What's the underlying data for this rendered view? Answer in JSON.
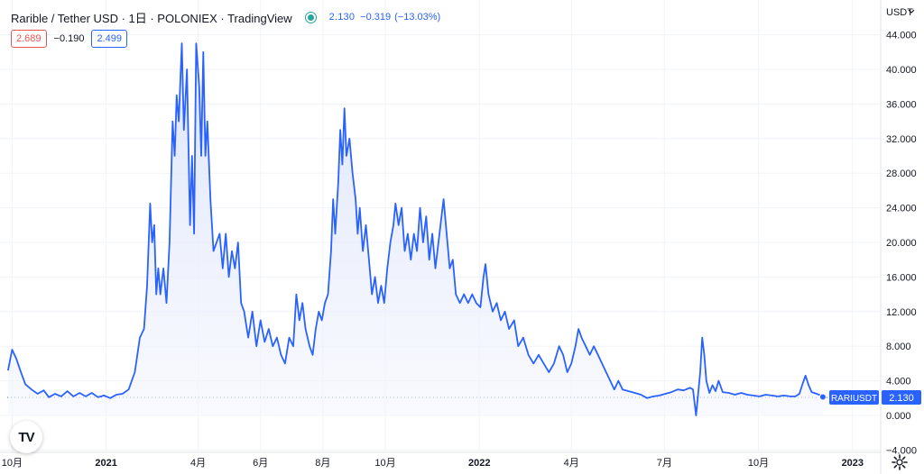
{
  "legend": {
    "title": "Rarible / Tether USD · 1日 · POLONIEX · TradingView",
    "price": "2.130",
    "change": "−0.319",
    "change_pct": "(−13.03%)",
    "bid": "2.689",
    "spread": "−0.190",
    "ask": "2.499"
  },
  "price_label": {
    "symbol": "RARIUSDT",
    "value": "2.130"
  },
  "currency": "USDT",
  "tv_logo": "TV",
  "colors": {
    "line": "#2962ff",
    "fill_top": "#dbe3fb",
    "label_bg": "#2962ff",
    "bid_box": "#ef5350",
    "ask_box": "#2962ff",
    "live_dot": "#26a69a",
    "grid": "#f0f3fa"
  },
  "chart_data": {
    "type": "area",
    "title": "Rarible / Tether USD · 1日 · POLONIEX · TradingView",
    "xlabel": "",
    "ylabel": "",
    "ylim": [
      -4,
      46
    ],
    "grid": true,
    "legend": "top-left",
    "x_range": [
      "2020-09-28",
      "2023-01-25"
    ],
    "y_ticks": [
      "44.000",
      "40.000",
      "36.000",
      "32.000",
      "28.000",
      "24.000",
      "20.000",
      "16.000",
      "12.000",
      "8.000",
      "4.000",
      "0.000",
      "−4.000"
    ],
    "y_tick_values": [
      44,
      40,
      36,
      32,
      28,
      24,
      20,
      16,
      12,
      8,
      4,
      0,
      -4
    ],
    "x_ticks": [
      {
        "label": "10月",
        "date": "2020-10-01",
        "bold": false
      },
      {
        "label": "2021",
        "date": "2021-01-01",
        "bold": true
      },
      {
        "label": "4月",
        "date": "2021-04-01",
        "bold": false
      },
      {
        "label": "6月",
        "date": "2021-06-01",
        "bold": false
      },
      {
        "label": "8月",
        "date": "2021-08-01",
        "bold": false
      },
      {
        "label": "10月",
        "date": "2021-10-01",
        "bold": false
      },
      {
        "label": "2022",
        "date": "2022-01-01",
        "bold": true
      },
      {
        "label": "4月",
        "date": "2022-04-01",
        "bold": false
      },
      {
        "label": "7月",
        "date": "2022-07-01",
        "bold": false
      },
      {
        "label": "10月",
        "date": "2022-10-01",
        "bold": false
      },
      {
        "label": "2023",
        "date": "2023-01-01",
        "bold": true
      }
    ],
    "last_value": 2.13,
    "series": [
      {
        "values": [
          [
            "2020-09-27",
            5.2
          ],
          [
            "2020-10-01",
            7.6
          ],
          [
            "2020-10-05",
            6.6
          ],
          [
            "2020-10-09",
            5.2
          ],
          [
            "2020-10-14",
            3.6
          ],
          [
            "2020-10-20",
            3.0
          ],
          [
            "2020-10-26",
            2.5
          ],
          [
            "2020-11-01",
            2.9
          ],
          [
            "2020-11-06",
            2.1
          ],
          [
            "2020-11-12",
            2.5
          ],
          [
            "2020-11-18",
            2.2
          ],
          [
            "2020-11-24",
            2.8
          ],
          [
            "2020-11-30",
            2.2
          ],
          [
            "2020-12-06",
            2.6
          ],
          [
            "2020-12-12",
            2.2
          ],
          [
            "2020-12-18",
            2.6
          ],
          [
            "2020-12-24",
            2.1
          ],
          [
            "2020-12-30",
            2.3
          ],
          [
            "2021-01-05",
            2.0
          ],
          [
            "2021-01-11",
            2.4
          ],
          [
            "2021-01-17",
            2.5
          ],
          [
            "2021-01-23",
            3.0
          ],
          [
            "2021-01-29",
            5.0
          ],
          [
            "2021-02-03",
            9.0
          ],
          [
            "2021-02-07",
            10.0
          ],
          [
            "2021-02-10",
            15.0
          ],
          [
            "2021-02-13",
            24.5
          ],
          [
            "2021-02-15",
            20.0
          ],
          [
            "2021-02-17",
            22.0
          ],
          [
            "2021-02-19",
            14.0
          ],
          [
            "2021-02-21",
            17.0
          ],
          [
            "2021-02-23",
            14.0
          ],
          [
            "2021-02-26",
            17.0
          ],
          [
            "2021-03-01",
            13.0
          ],
          [
            "2021-03-04",
            20.0
          ],
          [
            "2021-03-07",
            34.0
          ],
          [
            "2021-03-09",
            30.0
          ],
          [
            "2021-03-11",
            37.0
          ],
          [
            "2021-03-13",
            34.0
          ],
          [
            "2021-03-16",
            43.0
          ],
          [
            "2021-03-18",
            33.0
          ],
          [
            "2021-03-21",
            40.0
          ],
          [
            "2021-03-24",
            22.0
          ],
          [
            "2021-03-26",
            30.0
          ],
          [
            "2021-03-28",
            21.0
          ],
          [
            "2021-03-30",
            43.0
          ],
          [
            "2021-04-02",
            38.0
          ],
          [
            "2021-04-04",
            30.0
          ],
          [
            "2021-04-06",
            42.0
          ],
          [
            "2021-04-08",
            30.0
          ],
          [
            "2021-04-10",
            34.0
          ],
          [
            "2021-04-13",
            25.0
          ],
          [
            "2021-04-16",
            19.0
          ],
          [
            "2021-04-19",
            20.0
          ],
          [
            "2021-04-22",
            21.0
          ],
          [
            "2021-04-25",
            17.0
          ],
          [
            "2021-04-28",
            21.0
          ],
          [
            "2021-05-01",
            16.0
          ],
          [
            "2021-05-04",
            19.0
          ],
          [
            "2021-05-07",
            17.0
          ],
          [
            "2021-05-10",
            20.0
          ],
          [
            "2021-05-13",
            13.0
          ],
          [
            "2021-05-16",
            12.0
          ],
          [
            "2021-05-20",
            9.0
          ],
          [
            "2021-05-24",
            12.0
          ],
          [
            "2021-05-28",
            8.0
          ],
          [
            "2021-06-01",
            11.0
          ],
          [
            "2021-06-05",
            8.5
          ],
          [
            "2021-06-09",
            10.0
          ],
          [
            "2021-06-13",
            8.0
          ],
          [
            "2021-06-17",
            9.0
          ],
          [
            "2021-06-21",
            7.0
          ],
          [
            "2021-06-25",
            6.0
          ],
          [
            "2021-06-29",
            9.0
          ],
          [
            "2021-07-03",
            8.0
          ],
          [
            "2021-07-06",
            14.0
          ],
          [
            "2021-07-09",
            11.0
          ],
          [
            "2021-07-12",
            13.0
          ],
          [
            "2021-07-15",
            10.0
          ],
          [
            "2021-07-19",
            8.0
          ],
          [
            "2021-07-22",
            7.0
          ],
          [
            "2021-07-25",
            10.0
          ],
          [
            "2021-07-28",
            12.0
          ],
          [
            "2021-07-31",
            11.0
          ],
          [
            "2021-08-03",
            13.0
          ],
          [
            "2021-08-06",
            14.0
          ],
          [
            "2021-08-09",
            19.0
          ],
          [
            "2021-08-11",
            25.0
          ],
          [
            "2021-08-13",
            21.0
          ],
          [
            "2021-08-16",
            27.0
          ],
          [
            "2021-08-18",
            33.0
          ],
          [
            "2021-08-20",
            29.0
          ],
          [
            "2021-08-22",
            35.5
          ],
          [
            "2021-08-24",
            30.0
          ],
          [
            "2021-08-27",
            32.0
          ],
          [
            "2021-08-30",
            28.0
          ],
          [
            "2021-09-02",
            25.0
          ],
          [
            "2021-09-04",
            21.0
          ],
          [
            "2021-09-06",
            24.0
          ],
          [
            "2021-09-09",
            19.0
          ],
          [
            "2021-09-12",
            22.0
          ],
          [
            "2021-09-15",
            18.0
          ],
          [
            "2021-09-18",
            14.0
          ],
          [
            "2021-09-21",
            16.0
          ],
          [
            "2021-09-24",
            13.0
          ],
          [
            "2021-09-27",
            15.0
          ],
          [
            "2021-09-30",
            13.0
          ],
          [
            "2021-10-03",
            17.0
          ],
          [
            "2021-10-06",
            20.0
          ],
          [
            "2021-10-09",
            22.0
          ],
          [
            "2021-10-11",
            24.5
          ],
          [
            "2021-10-14",
            22.0
          ],
          [
            "2021-10-17",
            24.0
          ],
          [
            "2021-10-20",
            19.0
          ],
          [
            "2021-10-23",
            21.0
          ],
          [
            "2021-10-26",
            18.0
          ],
          [
            "2021-10-29",
            21.0
          ],
          [
            "2021-11-01",
            19.0
          ],
          [
            "2021-11-04",
            24.0
          ],
          [
            "2021-11-07",
            20.0
          ],
          [
            "2021-11-10",
            23.0
          ],
          [
            "2021-11-13",
            18.0
          ],
          [
            "2021-11-16",
            21.0
          ],
          [
            "2021-11-19",
            17.0
          ],
          [
            "2021-11-22",
            20.0
          ],
          [
            "2021-11-25",
            23.0
          ],
          [
            "2021-11-27",
            25.0
          ],
          [
            "2021-11-30",
            21.0
          ],
          [
            "2021-12-03",
            17.0
          ],
          [
            "2021-12-06",
            18.0
          ],
          [
            "2021-12-09",
            14.0
          ],
          [
            "2021-12-13",
            13.0
          ],
          [
            "2021-12-17",
            14.0
          ],
          [
            "2021-12-21",
            13.0
          ],
          [
            "2021-12-25",
            14.0
          ],
          [
            "2021-12-29",
            13.0
          ],
          [
            "2022-01-02",
            12.5
          ],
          [
            "2022-01-05",
            16.0
          ],
          [
            "2022-01-07",
            17.5
          ],
          [
            "2022-01-10",
            14.0
          ],
          [
            "2022-01-14",
            12.0
          ],
          [
            "2022-01-18",
            13.0
          ],
          [
            "2022-01-22",
            11.0
          ],
          [
            "2022-01-26",
            12.0
          ],
          [
            "2022-01-30",
            10.0
          ],
          [
            "2022-02-04",
            11.0
          ],
          [
            "2022-02-08",
            8.0
          ],
          [
            "2022-02-13",
            9.0
          ],
          [
            "2022-02-18",
            7.0
          ],
          [
            "2022-02-23",
            6.0
          ],
          [
            "2022-02-28",
            7.0
          ],
          [
            "2022-03-05",
            6.0
          ],
          [
            "2022-03-10",
            5.0
          ],
          [
            "2022-03-15",
            6.0
          ],
          [
            "2022-03-20",
            8.0
          ],
          [
            "2022-03-24",
            7.0
          ],
          [
            "2022-03-28",
            5.0
          ],
          [
            "2022-04-01",
            6.0
          ],
          [
            "2022-04-05",
            8.0
          ],
          [
            "2022-04-08",
            10.0
          ],
          [
            "2022-04-11",
            9.0
          ],
          [
            "2022-04-15",
            8.0
          ],
          [
            "2022-04-19",
            7.0
          ],
          [
            "2022-04-23",
            8.0
          ],
          [
            "2022-04-27",
            7.0
          ],
          [
            "2022-05-01",
            6.0
          ],
          [
            "2022-05-05",
            5.0
          ],
          [
            "2022-05-09",
            4.0
          ],
          [
            "2022-05-13",
            3.0
          ],
          [
            "2022-05-17",
            4.0
          ],
          [
            "2022-05-21",
            3.0
          ],
          [
            "2022-05-27",
            2.8
          ],
          [
            "2022-06-02",
            2.6
          ],
          [
            "2022-06-08",
            2.4
          ],
          [
            "2022-06-14",
            2.0
          ],
          [
            "2022-06-20",
            2.2
          ],
          [
            "2022-06-26",
            2.3
          ],
          [
            "2022-07-02",
            2.5
          ],
          [
            "2022-07-08",
            2.7
          ],
          [
            "2022-07-14",
            3.0
          ],
          [
            "2022-07-20",
            2.9
          ],
          [
            "2022-07-26",
            3.2
          ],
          [
            "2022-07-29",
            3.0
          ],
          [
            "2022-08-01",
            0.0
          ],
          [
            "2022-08-03",
            2.5
          ],
          [
            "2022-08-05",
            5.0
          ],
          [
            "2022-08-07",
            9.0
          ],
          [
            "2022-08-09",
            7.0
          ],
          [
            "2022-08-11",
            4.0
          ],
          [
            "2022-08-14",
            2.6
          ],
          [
            "2022-08-17",
            3.5
          ],
          [
            "2022-08-20",
            2.8
          ],
          [
            "2022-08-23",
            4.0
          ],
          [
            "2022-08-27",
            2.7
          ],
          [
            "2022-09-02",
            2.6
          ],
          [
            "2022-09-08",
            2.4
          ],
          [
            "2022-09-14",
            2.6
          ],
          [
            "2022-09-20",
            2.4
          ],
          [
            "2022-09-26",
            2.3
          ],
          [
            "2022-10-02",
            2.2
          ],
          [
            "2022-10-08",
            2.4
          ],
          [
            "2022-10-14",
            2.3
          ],
          [
            "2022-10-20",
            2.2
          ],
          [
            "2022-10-26",
            2.3
          ],
          [
            "2022-11-01",
            2.2
          ],
          [
            "2022-11-06",
            2.2
          ],
          [
            "2022-11-10",
            2.5
          ],
          [
            "2022-11-13",
            3.6
          ],
          [
            "2022-11-16",
            4.6
          ],
          [
            "2022-11-19",
            3.5
          ],
          [
            "2022-11-22",
            2.7
          ],
          [
            "2022-11-27",
            2.5
          ],
          [
            "2022-12-01",
            2.3
          ],
          [
            "2022-12-03",
            2.13
          ]
        ]
      }
    ]
  }
}
